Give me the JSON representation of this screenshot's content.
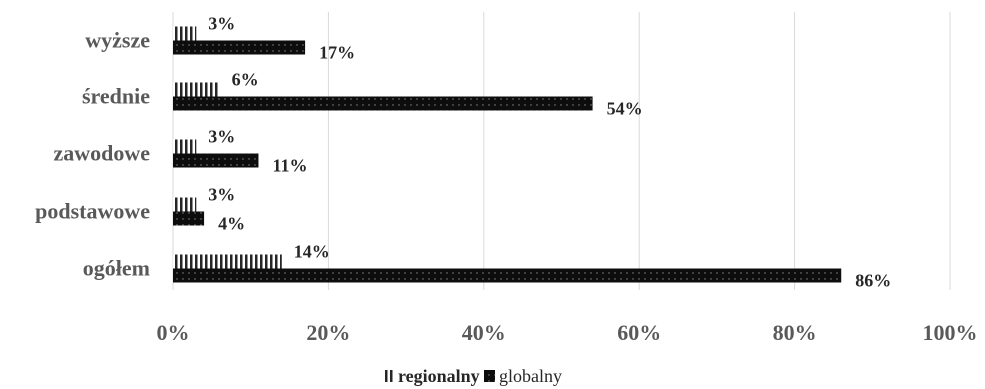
{
  "chart_data": {
    "type": "bar",
    "orientation": "horizontal",
    "categories": [
      "wyższe",
      "średnie",
      "zawodowe",
      "podstawowe",
      "ogółem"
    ],
    "series": [
      {
        "name": "regionalny",
        "values": [
          3,
          6,
          3,
          3,
          14
        ],
        "labels": [
          "3%",
          "6%",
          "3%",
          "3%",
          "14%"
        ],
        "pattern": "vertical-stripes",
        "color": "#262626"
      },
      {
        "name": "globalny",
        "values": [
          17,
          54,
          11,
          4,
          86
        ],
        "labels": [
          "17%",
          "54%",
          "11%",
          "4%",
          "86%"
        ],
        "pattern": "dotted-black",
        "color": "#0d0d0d"
      }
    ],
    "xlim": [
      0,
      100
    ],
    "xticks": [
      0,
      20,
      40,
      60,
      80,
      100
    ],
    "xtick_labels": [
      "0%",
      "20%",
      "40%",
      "60%",
      "80%",
      "100%"
    ],
    "grid": true,
    "legend_position": "bottom",
    "title": "",
    "xlabel": "",
    "ylabel": ""
  }
}
